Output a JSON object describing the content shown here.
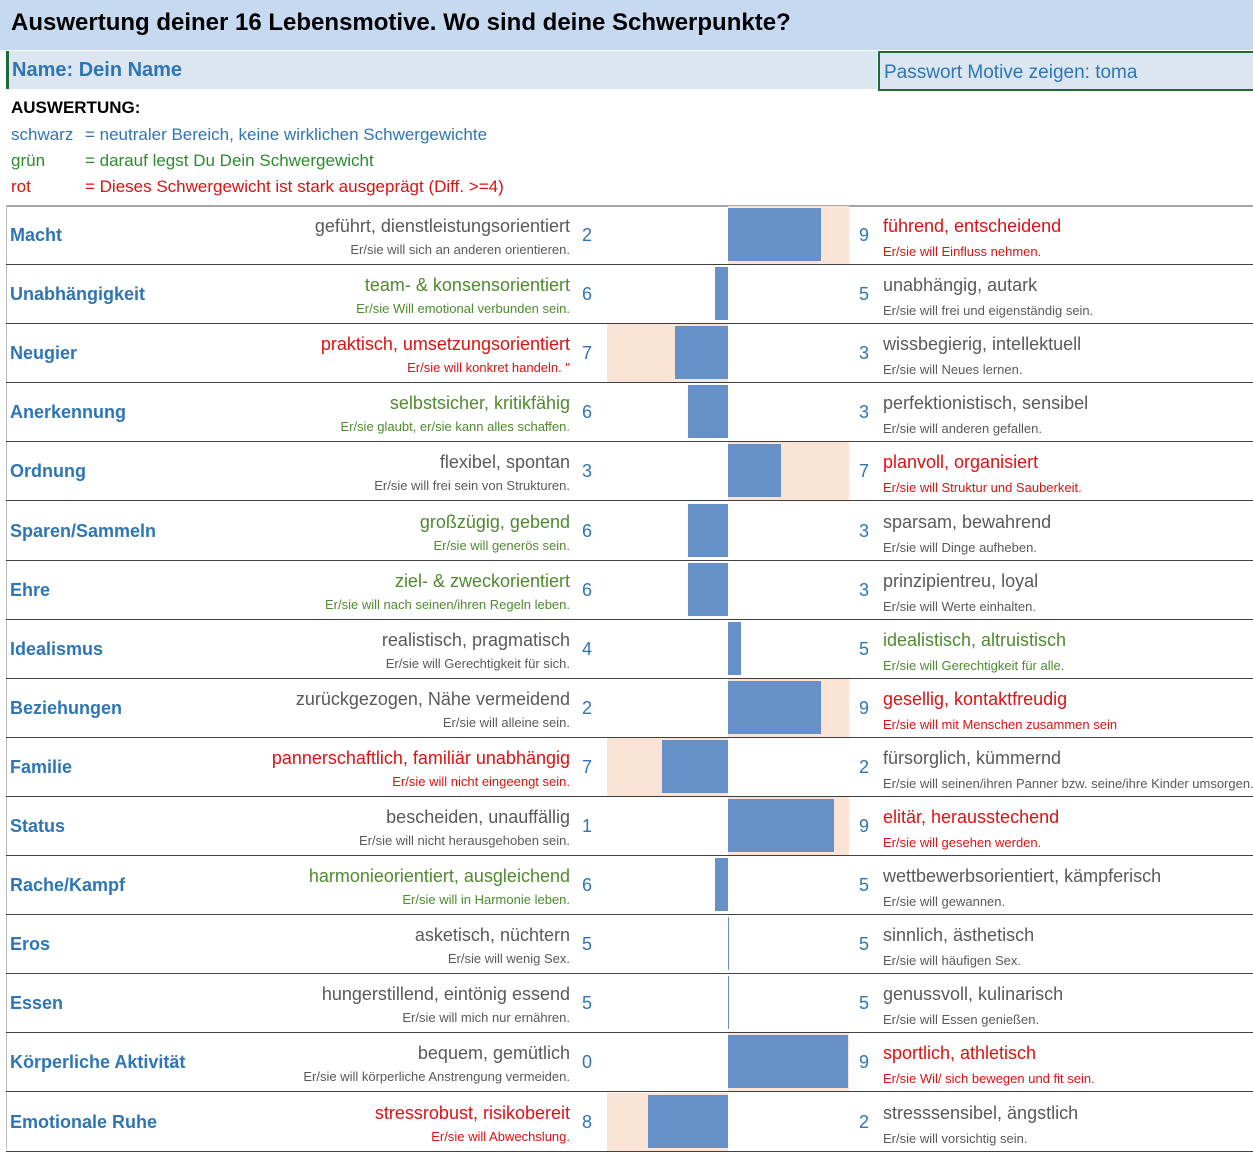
{
  "header": {
    "title": "Auswertung deiner 16 Lebensmotive. Wo sind deine Schwerpunkte?",
    "name_label": "Name: Dein Name",
    "password_label": "Passwort Motive zeigen: toma"
  },
  "legend": {
    "heading": "AUSWERTUNG:",
    "black_key": "schwarz",
    "black_text": "= neutraler Bereich, keine wirklichen Schwergewichte",
    "green_key": "grün",
    "green_text": "= darauf legst Du Dein Schwergewicht",
    "red_key": "rot",
    "red_text": "= Dieses Schwergewicht ist stark ausgeprägt (Diff. >=4)"
  },
  "colors": {
    "neutral": "#595959",
    "green": "#4e8a2e",
    "red": "#dd1111",
    "bar": "#6590c8",
    "highlight": "#fbe3d6",
    "label_blue": "#2e75b6"
  },
  "motives": [
    {
      "name": "Macht",
      "left_main": "geführt, dienstleistungsorientiert",
      "left_sub": "Er/sie will sich an anderen orientieren.",
      "left_value": 2,
      "right_value": 9,
      "right_main": "führend, entscheidend",
      "right_sub": "Er/sie will Einfluss nehmen.",
      "left_color": "neutral",
      "right_color": "red"
    },
    {
      "name": "Unabhängigkeit",
      "left_main": "team- & konsensorientiert",
      "left_sub": "Er/sie Will emotional verbunden sein.",
      "left_value": 6,
      "right_value": 5,
      "right_main": "unabhängig, autark",
      "right_sub": "Er/sie will frei und eigenständig sein.",
      "left_color": "green",
      "right_color": "neutral"
    },
    {
      "name": "Neugier",
      "left_main": "praktisch, umsetzungsorientiert",
      "left_sub": "Er/sie will konkret handeln. \"",
      "left_value": 7,
      "right_value": 3,
      "right_main": "wissbegierig, intellektuell",
      "right_sub": "Er/sie will Neues lernen.",
      "left_color": "red",
      "right_color": "neutral"
    },
    {
      "name": "Anerkennung",
      "left_main": "selbstsicher, kritikfähig",
      "left_sub": "Er/sie glaubt, er/sie kann alles schaffen.",
      "left_value": 6,
      "right_value": 3,
      "right_main": "perfektionistisch, sensibel",
      "right_sub": "Er/sie will anderen gefallen.",
      "left_color": "green",
      "right_color": "neutral"
    },
    {
      "name": "Ordnung",
      "left_main": "flexibel, spontan",
      "left_sub": "Er/sie will frei sein von Strukturen.",
      "left_value": 3,
      "right_value": 7,
      "right_main": "planvoll, organisiert",
      "right_sub": "Er/sie will Struktur und Sauberkeit.",
      "left_color": "neutral",
      "right_color": "red"
    },
    {
      "name": "Sparen/Sammeln",
      "left_main": "großzügig, gebend",
      "left_sub": "Er/sie will generös sein.",
      "left_value": 6,
      "right_value": 3,
      "right_main": "sparsam, bewahrend",
      "right_sub": "Er/sie will Dinge aufheben.",
      "left_color": "green",
      "right_color": "neutral"
    },
    {
      "name": "Ehre",
      "left_main": "ziel- & zweckorientiert",
      "left_sub": "Er/sie will nach seinen/ihren Regeln leben.",
      "left_value": 6,
      "right_value": 3,
      "right_main": "prinzipientreu, loyal",
      "right_sub": "Er/sie will Werte einhalten.",
      "left_color": "green",
      "right_color": "neutral"
    },
    {
      "name": "Idealismus",
      "left_main": "realistisch, pragmatisch",
      "left_sub": "Er/sie will Gerechtigkeit für sich.",
      "left_value": 4,
      "right_value": 5,
      "right_main": "idealistisch, altruistisch",
      "right_sub": "Er/sie will Gerechtigkeit für alle.",
      "left_color": "neutral",
      "right_color": "green"
    },
    {
      "name": "Beziehungen",
      "left_main": "zurückgezogen, Nähe vermeidend",
      "left_sub": "Er/sie will alleine sein.",
      "left_value": 2,
      "right_value": 9,
      "right_main": "gesellig, kontaktfreudig",
      "right_sub": "Er/sie will mit Menschen zusammen sein",
      "left_color": "neutral",
      "right_color": "red"
    },
    {
      "name": "Familie",
      "left_main": "pannerschaftlich, familiär unabhängig",
      "left_sub": "Er/sie will nicht eingeengt sein.",
      "left_value": 7,
      "right_value": 2,
      "right_main": "fürsorglich, kümmernd",
      "right_sub": "Er/sie will seinen/ihren Panner bzw. seine/ihre Kinder umsorgen.",
      "left_color": "red",
      "right_color": "neutral"
    },
    {
      "name": "Status",
      "left_main": "bescheiden, unauffällig",
      "left_sub": "Er/sie will nicht herausgehoben sein.",
      "left_value": 1,
      "right_value": 9,
      "right_main": "elitär, herausstechend",
      "right_sub": "Er/sie will gesehen werden.",
      "left_color": "neutral",
      "right_color": "red"
    },
    {
      "name": "Rache/Kampf",
      "left_main": "harmonieorientiert, ausgleichend",
      "left_sub": "Er/sie will in Harmonie leben.",
      "left_value": 6,
      "right_value": 5,
      "right_main": "wettbewerbsorientiert, kämpferisch",
      "right_sub": "Er/sie will gewannen.",
      "left_color": "green",
      "right_color": "neutral"
    },
    {
      "name": "Eros",
      "left_main": "asketisch, nüchtern",
      "left_sub": "Er/sie will wenig Sex.",
      "left_value": 5,
      "right_value": 5,
      "right_main": "sinnlich, ästhetisch",
      "right_sub": "Er/sie will häufigen Sex.",
      "left_color": "neutral",
      "right_color": "neutral"
    },
    {
      "name": "Essen",
      "left_main": "hungerstillend, eintönig essend",
      "left_sub": "Er/sie will mich nur ernähren.",
      "left_value": 5,
      "right_value": 5,
      "right_main": "genussvoll, kulinarisch",
      "right_sub": "Er/sie will Essen genießen.",
      "left_color": "neutral",
      "right_color": "neutral"
    },
    {
      "name": "Körperliche Aktivität",
      "left_main": "bequem, gemütlich",
      "left_sub": "Er/sie will körperliche Anstrengung vermeiden.",
      "left_value": 0,
      "right_value": 9,
      "right_main": "sportlich, athletisch",
      "right_sub": "Er/sie Wil/ sich bewegen und fit sein.",
      "left_color": "neutral",
      "right_color": "red"
    },
    {
      "name": "Emotionale Ruhe",
      "left_main": "stressrobust, risikobereit",
      "left_sub": "Er/sie will Abwechslung.",
      "left_value": 8,
      "right_value": 2,
      "right_main": "stresssensibel, ängstlich",
      "right_sub": "Er/sie will vorsichtig sein.",
      "left_color": "red",
      "right_color": "neutral"
    }
  ]
}
